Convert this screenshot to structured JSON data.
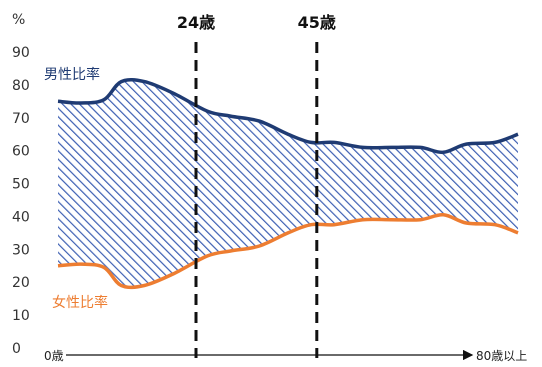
{
  "chart_data": {
    "type": "area",
    "y_unit": "%",
    "ylim": [
      0,
      90
    ],
    "yticks": [
      0,
      10,
      20,
      30,
      40,
      50,
      60,
      70,
      80,
      90
    ],
    "x_start_label": "0歳",
    "x_end_label": "80歳以上",
    "xlim": [
      0,
      80
    ],
    "markers": [
      {
        "x": 24,
        "label": "24歳"
      },
      {
        "x": 45,
        "label": "45歳"
      }
    ],
    "series": [
      {
        "name": "男性比率",
        "color": "#1f3b73",
        "x": [
          0,
          4,
          8,
          11,
          15,
          20,
          26,
          30,
          35,
          40,
          44,
          48,
          53,
          58,
          63,
          67,
          71,
          76,
          80
        ],
        "values": [
          75,
          74.5,
          75.5,
          81,
          81,
          77.5,
          72,
          70.5,
          69,
          65,
          62.5,
          62.5,
          61,
          61,
          61,
          59.5,
          62,
          62.5,
          65
        ]
      },
      {
        "name": "女性比率",
        "color": "#ed7d31",
        "x": [
          0,
          4,
          8,
          11,
          15,
          20,
          26,
          30,
          35,
          40,
          44,
          48,
          53,
          58,
          63,
          67,
          71,
          76,
          80
        ],
        "values": [
          25,
          25.5,
          24.5,
          19,
          19,
          22.5,
          28,
          29.5,
          31,
          35,
          37.5,
          37.5,
          39,
          39,
          39,
          40.5,
          38,
          37.5,
          35
        ]
      }
    ]
  }
}
